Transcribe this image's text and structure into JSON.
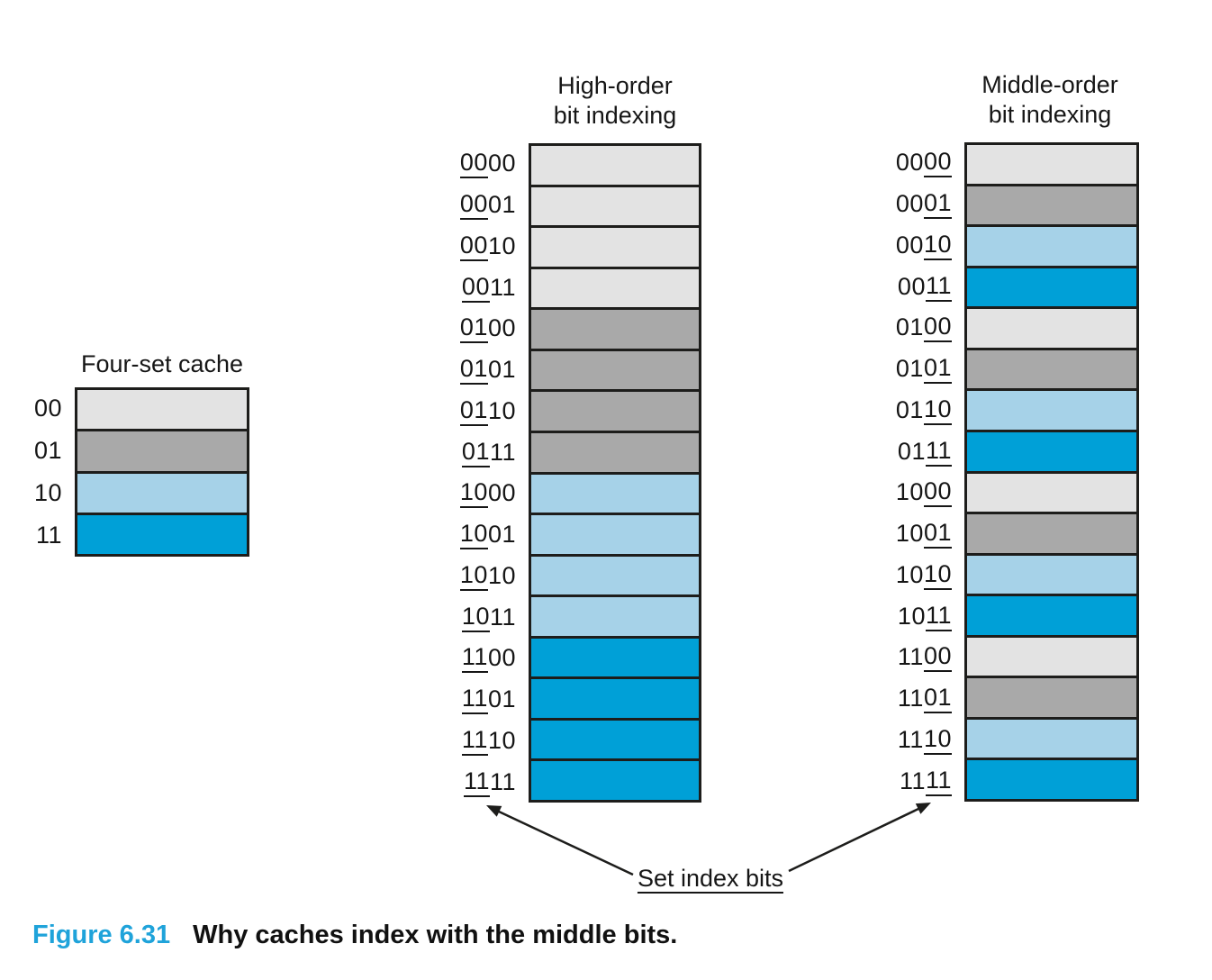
{
  "colors": {
    "set00": "#e3e3e3",
    "set01": "#a9a9a9",
    "set10": "#a6d2e8",
    "set11": "#00a0d7",
    "ink": "#1d1d1b",
    "caption_accent": "#1fa3da"
  },
  "four_set_cache": {
    "title": "Four-set cache",
    "rows": [
      {
        "pre": "00",
        "set": "set00"
      },
      {
        "pre": "01",
        "set": "set01"
      },
      {
        "pre": "10",
        "set": "set10"
      },
      {
        "pre": "11",
        "set": "set11"
      }
    ]
  },
  "high_order": {
    "title_line1": "High-order",
    "title_line2": "bit indexing",
    "rows": [
      {
        "u": "00",
        "post": "00",
        "set": "set00"
      },
      {
        "u": "00",
        "post": "01",
        "set": "set00"
      },
      {
        "u": "00",
        "post": "10",
        "set": "set00"
      },
      {
        "u": "00",
        "post": "11",
        "set": "set00"
      },
      {
        "u": "01",
        "post": "00",
        "set": "set01"
      },
      {
        "u": "01",
        "post": "01",
        "set": "set01"
      },
      {
        "u": "01",
        "post": "10",
        "set": "set01"
      },
      {
        "u": "01",
        "post": "11",
        "set": "set01"
      },
      {
        "u": "10",
        "post": "00",
        "set": "set10"
      },
      {
        "u": "10",
        "post": "01",
        "set": "set10"
      },
      {
        "u": "10",
        "post": "10",
        "set": "set10"
      },
      {
        "u": "10",
        "post": "11",
        "set": "set10"
      },
      {
        "u": "11",
        "post": "00",
        "set": "set11"
      },
      {
        "u": "11",
        "post": "01",
        "set": "set11"
      },
      {
        "u": "11",
        "post": "10",
        "set": "set11"
      },
      {
        "u": "11",
        "post": "11",
        "set": "set11"
      }
    ]
  },
  "middle_order": {
    "title_line1": "Middle-order",
    "title_line2": "bit indexing",
    "rows": [
      {
        "pre": "00",
        "u": "00",
        "set": "set00"
      },
      {
        "pre": "00",
        "u": "01",
        "set": "set01"
      },
      {
        "pre": "00",
        "u": "10",
        "set": "set10"
      },
      {
        "pre": "00",
        "u": "11",
        "set": "set11"
      },
      {
        "pre": "01",
        "u": "00",
        "set": "set00"
      },
      {
        "pre": "01",
        "u": "01",
        "set": "set01"
      },
      {
        "pre": "01",
        "u": "10",
        "set": "set10"
      },
      {
        "pre": "01",
        "u": "11",
        "set": "set11"
      },
      {
        "pre": "10",
        "u": "00",
        "set": "set00"
      },
      {
        "pre": "10",
        "u": "01",
        "set": "set01"
      },
      {
        "pre": "10",
        "u": "10",
        "set": "set10"
      },
      {
        "pre": "10",
        "u": "11",
        "set": "set11"
      },
      {
        "pre": "11",
        "u": "00",
        "set": "set00"
      },
      {
        "pre": "11",
        "u": "01",
        "set": "set01"
      },
      {
        "pre": "11",
        "u": "10",
        "set": "set10"
      },
      {
        "pre": "11",
        "u": "11",
        "set": "set11"
      }
    ]
  },
  "annotations": {
    "set_index_bits": "Set index bits"
  },
  "caption": {
    "label": "Figure 6.31",
    "text": "Why caches index with the middle bits."
  }
}
